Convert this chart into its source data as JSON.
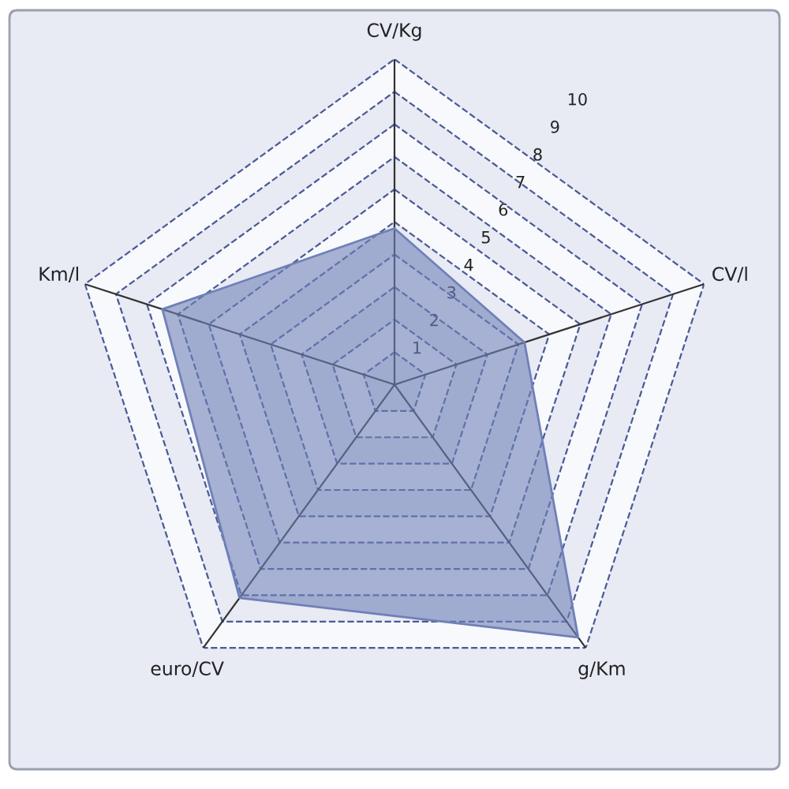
{
  "chart_data": {
    "type": "radar",
    "categories": [
      "CV/Kg",
      "CV/l",
      "g/Km",
      "euro/CV",
      "Km/l"
    ],
    "series": [
      {
        "color": "#6f80b8",
        "values": [
          4.8,
          4.2,
          9.6,
          8.1,
          7.5
        ]
      }
    ],
    "ylim": [
      0,
      10
    ],
    "yticks": [
      1,
      2,
      3,
      4,
      5,
      6,
      7,
      8,
      9,
      10
    ],
    "grid": true,
    "line_style": "dashed"
  }
}
